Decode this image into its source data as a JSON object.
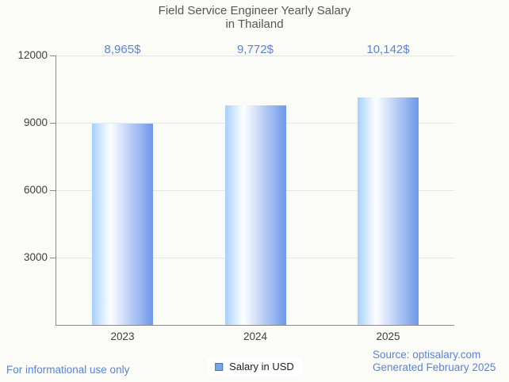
{
  "chart": {
    "title_line1": "Field Service Engineer Yearly Salary",
    "title_line2": "in Thailand"
  },
  "chart_data": {
    "type": "bar",
    "title": "Field Service Engineer Yearly Salary in Thailand",
    "categories": [
      "2023",
      "2024",
      "2025"
    ],
    "values": [
      8965,
      9772,
      10142
    ],
    "value_labels": [
      "8,965$",
      "9,772$",
      "10,142$"
    ],
    "series_name": "Salary in USD",
    "xlabel": "",
    "ylabel": "",
    "ylim": [
      0,
      12000
    ],
    "yticks": [
      12000,
      9000,
      6000,
      3000
    ],
    "ytick_labels": [
      "12000",
      "9000",
      "6000",
      "3000"
    ],
    "grid": true,
    "legend_position": "bottom",
    "bar_gradient": [
      "#a7d1fb",
      "#ffffff",
      "#6e98e9"
    ]
  },
  "legend": {
    "label": "Salary in USD"
  },
  "footer": {
    "disclaimer": "For informational use only",
    "source_line1": "Source: optisalary.com",
    "source_line2": "Generated February 2025"
  },
  "colors": {
    "background": "#fbfbf8",
    "accent_blue": "#5b83de",
    "title_gray": "#56575a",
    "axis_gray": "#8c8c8c",
    "grid_gray": "#e4e4e1",
    "legend_swatch_fill": "#76a9e4",
    "legend_swatch_border": "#4c71ad"
  }
}
